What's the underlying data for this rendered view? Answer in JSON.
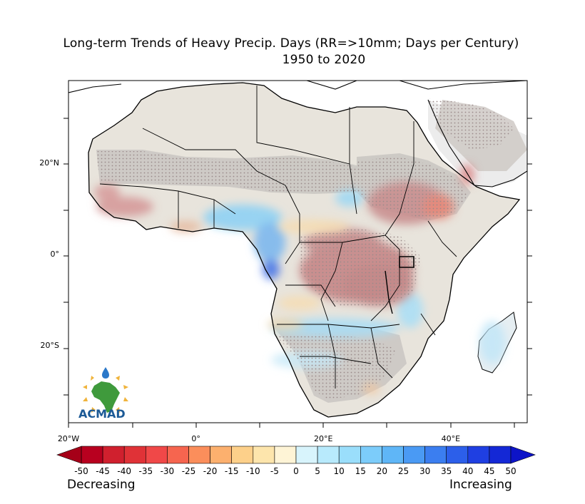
{
  "title": {
    "line1": "Long-term Trends of Heavy Precip. Days (RR=>10mm; Days per Century)",
    "line2": "1950 to 2020"
  },
  "axes": {
    "x_ticks": [
      {
        "value": -20,
        "label": "20°W"
      },
      {
        "value": 0,
        "label": "0°"
      },
      {
        "value": 20,
        "label": "20°E"
      },
      {
        "value": 40,
        "label": "40°E"
      }
    ],
    "y_ticks": [
      {
        "value": 20,
        "label": "20°N"
      },
      {
        "value": 0,
        "label": "0°"
      },
      {
        "value": -20,
        "label": "20°S"
      }
    ],
    "lon_range": [
      -20,
      52
    ],
    "lat_range": [
      -37,
      38
    ]
  },
  "colorbar": {
    "values": [
      -50,
      -45,
      -40,
      -35,
      -30,
      -25,
      -20,
      -15,
      -10,
      -5,
      0,
      5,
      10,
      15,
      20,
      25,
      30,
      35,
      40,
      45,
      50
    ],
    "labels": [
      "-50",
      "-45",
      "-40",
      "-35",
      "-30",
      "-25",
      "-20",
      "-15",
      "-10",
      "-5",
      "0",
      "5",
      "10",
      "15",
      "20",
      "25",
      "30",
      "35",
      "40",
      "45",
      "50"
    ],
    "colors": [
      "#b8001f",
      "#d0202e",
      "#e03237",
      "#f04848",
      "#f6654f",
      "#fb8e5b",
      "#fcb06e",
      "#fdd08a",
      "#fde5ac",
      "#fef4d6",
      "#f2fbfd",
      "#d8f4fc",
      "#b8eafc",
      "#9adefb",
      "#7cccfa",
      "#5fb6f7",
      "#4a9af4",
      "#3b7ef0",
      "#2c5fea",
      "#1f3fe2",
      "#1428d6"
    ],
    "low_color": "#a50018",
    "high_color": "#0d14c8",
    "left_label": "Decreasing",
    "right_label": "Increasing"
  },
  "logo": {
    "text": "ACMAD"
  },
  "map_data": {
    "variable": "trend of heavy precipitation days (RR>=10mm)",
    "units": "days per century",
    "period": "1950 to 2020",
    "regions": [
      {
        "name": "Congo Basin",
        "trend": "decreasing"
      },
      {
        "name": "Ethiopian Highlands",
        "trend": "decreasing"
      },
      {
        "name": "Gulf of Guinea coast",
        "trend": "increasing"
      },
      {
        "name": "Southern Africa (Zambia, Angola)",
        "trend": "increasing"
      },
      {
        "name": "Senegal / Gambia",
        "trend": "decreasing"
      }
    ]
  }
}
